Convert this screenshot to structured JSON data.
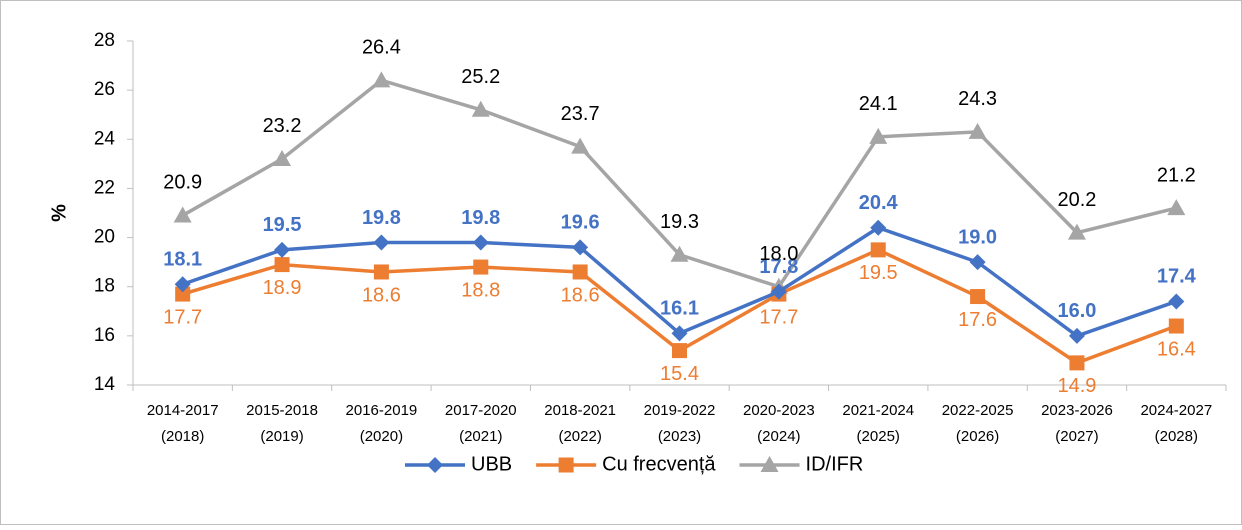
{
  "chart_data": {
    "type": "line",
    "y_label": "%",
    "categories": [
      [
        "2014-2017",
        "(2018)"
      ],
      [
        "2015-2018",
        "(2019)"
      ],
      [
        "2016-2019",
        "(2020)"
      ],
      [
        "2017-2020",
        "(2021)"
      ],
      [
        "2018-2021",
        "(2022)"
      ],
      [
        "2019-2022",
        "(2023)"
      ],
      [
        "2020-2023",
        "(2024)"
      ],
      [
        "2021-2024",
        "(2025)"
      ],
      [
        "2022-2025",
        "(2026)"
      ],
      [
        "2023-2026",
        "(2027)"
      ],
      [
        "2024-2027",
        "(2028)"
      ]
    ],
    "series": [
      {
        "name": "UBB",
        "color": "#4472c4",
        "marker": "diamond",
        "values": [
          18.1,
          19.5,
          19.8,
          19.8,
          19.6,
          16.1,
          17.8,
          20.4,
          19.0,
          16.0,
          17.4
        ],
        "value_labels": [
          "18.1",
          "19.5",
          "19.8",
          "19.8",
          "19.6",
          "16.1",
          "17.8",
          "20.4",
          "19.0",
          "16.0",
          "17.4"
        ]
      },
      {
        "name": "Cu frecvență",
        "color": "#ed7d31",
        "marker": "square",
        "values": [
          17.7,
          18.9,
          18.6,
          18.8,
          18.6,
          15.4,
          17.7,
          19.5,
          17.6,
          14.9,
          16.4
        ],
        "value_labels": [
          "17.7",
          "18.9",
          "18.6",
          "18.8",
          "18.6",
          "15.4",
          "17.7",
          "19.5",
          "17.6",
          "14.9",
          "16.4"
        ]
      },
      {
        "name": "ID/IFR",
        "color": "#a5a5a5",
        "marker": "triangle",
        "values": [
          20.9,
          23.2,
          26.4,
          25.2,
          23.7,
          19.3,
          18.0,
          24.1,
          24.3,
          20.2,
          21.2
        ],
        "value_labels": [
          "20.9",
          "23.2",
          "26.4",
          "25.2",
          "23.7",
          "19.3",
          "18.0",
          "24.1",
          "24.3",
          "20.2",
          "21.2"
        ]
      }
    ],
    "ylim": [
      14,
      28
    ],
    "yticks": [
      14,
      16,
      18,
      20,
      22,
      24,
      26,
      28
    ],
    "grid": false,
    "legend": "bottom"
  }
}
